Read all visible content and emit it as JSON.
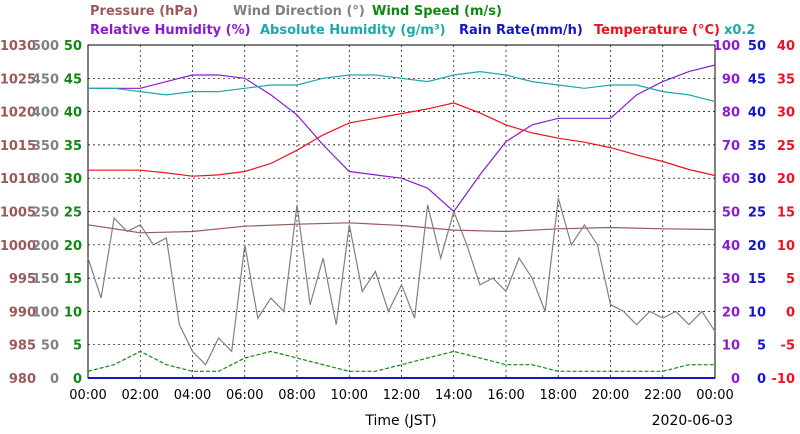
{
  "chart_data": {
    "type": "line",
    "date": "2020-06-03",
    "xlabel": "Time (JST)",
    "x_ticks": [
      "00:00",
      "02:00",
      "04:00",
      "06:00",
      "08:00",
      "10:00",
      "12:00",
      "14:00",
      "16:00",
      "18:00",
      "20:00",
      "22:00",
      "00:00"
    ],
    "left_axes": [
      {
        "name": "Pressure (hPa)",
        "color": "#9a5a5a",
        "min": 980,
        "max": 1030,
        "ticks": [
          "980",
          "985",
          "990",
          "995",
          "1000",
          "1005",
          "1010",
          "1015",
          "1020",
          "1025",
          "1030"
        ]
      },
      {
        "name": "Wind Direction (°)",
        "color": "#808080",
        "min": 0,
        "max": 500,
        "ticks": [
          "0",
          "50",
          "100",
          "150",
          "200",
          "250",
          "300",
          "350",
          "400",
          "450",
          "500"
        ]
      },
      {
        "name": "Wind Speed (m/s)",
        "color": "#118811",
        "min": 0,
        "max": 50,
        "ticks": [
          "0",
          "5",
          "10",
          "15",
          "20",
          "25",
          "30",
          "35",
          "40",
          "45",
          "50"
        ]
      }
    ],
    "right_axes": [
      {
        "name": "Relative Humidity (%)",
        "color": "#8a1ad6",
        "min": 0,
        "max": 100,
        "ticks": [
          "0",
          "10",
          "20",
          "30",
          "40",
          "50",
          "60",
          "70",
          "80",
          "90",
          "100"
        ]
      },
      {
        "name": "Absolute Humidity (g/m³)",
        "color": "#1aaaaa",
        "scale_note": "x0.2"
      },
      {
        "name": "Rain Rate(mm/h)",
        "color": "#1515cc",
        "min": 0,
        "max": 50,
        "ticks": [
          "0",
          "5",
          "10",
          "15",
          "20",
          "25",
          "30",
          "35",
          "40",
          "45",
          "50"
        ]
      },
      {
        "name": "Temperature (°C)",
        "color": "#ee1122",
        "min": -10,
        "max": 40,
        "ticks": [
          "-10",
          "-5",
          "0",
          "5",
          "10",
          "15",
          "20",
          "25",
          "30",
          "35",
          "40"
        ]
      }
    ],
    "grid": true,
    "series": [
      {
        "name": "Pressure (hPa)",
        "color": "#9a5a5a",
        "axis": "pressure",
        "x": [
          0,
          2,
          4,
          6,
          8,
          10,
          12,
          14,
          16,
          18,
          20,
          22,
          24
        ],
        "values": [
          1003.0,
          1001.8,
          1002.0,
          1002.8,
          1003.1,
          1003.3,
          1002.9,
          1002.2,
          1002.0,
          1002.4,
          1002.6,
          1002.4,
          1002.3
        ]
      },
      {
        "name": "Wind Direction (°)",
        "color": "#808080",
        "axis": "direction",
        "x": [
          0,
          0.5,
          1,
          1.5,
          2,
          2.5,
          3,
          3.5,
          4,
          4.5,
          5,
          5.5,
          6,
          6.5,
          7,
          7.5,
          8,
          8.5,
          9,
          9.5,
          10,
          10.5,
          11,
          11.5,
          12,
          12.5,
          13,
          13.5,
          14,
          14.5,
          15,
          15.5,
          16,
          16.5,
          17,
          17.5,
          18,
          18.5,
          19,
          19.5,
          20,
          20.5,
          21,
          21.5,
          22,
          22.5,
          23,
          23.5,
          24
        ],
        "values": [
          180,
          120,
          240,
          220,
          230,
          200,
          210,
          80,
          40,
          20,
          60,
          40,
          200,
          90,
          120,
          100,
          260,
          110,
          180,
          80,
          230,
          130,
          160,
          100,
          140,
          90,
          260,
          180,
          250,
          200,
          140,
          150,
          130,
          180,
          150,
          100,
          270,
          200,
          230,
          200,
          110,
          100,
          80,
          100,
          90,
          100,
          80,
          100,
          70
        ]
      },
      {
        "name": "Wind Speed (m/s)",
        "color": "#118811",
        "axis": "speed",
        "x": [
          0,
          1,
          2,
          3,
          4,
          5,
          6,
          7,
          8,
          9,
          10,
          11,
          12,
          13,
          14,
          15,
          16,
          17,
          18,
          19,
          20,
          21,
          22,
          23,
          24
        ],
        "values": [
          1,
          2,
          4,
          2,
          1,
          1,
          3,
          4,
          3,
          2,
          1,
          1,
          2,
          3,
          4,
          3,
          2,
          2,
          1,
          1,
          1,
          1,
          1,
          2,
          2
        ]
      },
      {
        "name": "Relative Humidity (%)",
        "color": "#8a1ad6",
        "axis": "rh",
        "x": [
          0,
          1,
          2,
          3,
          4,
          5,
          6,
          7,
          8,
          9,
          10,
          11,
          12,
          13,
          14,
          15,
          16,
          17,
          18,
          19,
          20,
          21,
          22,
          23,
          24
        ],
        "values": [
          87,
          87,
          87,
          89,
          91,
          91,
          90,
          85,
          79,
          70,
          62,
          61,
          60,
          57,
          50,
          61,
          71,
          76,
          78,
          78,
          78,
          85,
          89,
          92,
          94
        ]
      },
      {
        "name": "Absolute Humidity (g/m³)",
        "color": "#1aaaaa",
        "axis": "rh",
        "scale": "x0.2",
        "x": [
          0,
          1,
          2,
          3,
          4,
          5,
          6,
          7,
          8,
          9,
          10,
          11,
          12,
          13,
          14,
          15,
          16,
          17,
          18,
          19,
          20,
          21,
          22,
          23,
          24
        ],
        "values": [
          87,
          87,
          86,
          85,
          86,
          86,
          87,
          88,
          88,
          90,
          91,
          91,
          90,
          89,
          91,
          92,
          91,
          89,
          88,
          87,
          88,
          88,
          86,
          85,
          83
        ]
      },
      {
        "name": "Temperature (°C)",
        "color": "#ee1122",
        "axis": "temp",
        "x": [
          0,
          1,
          2,
          3,
          4,
          5,
          6,
          7,
          8,
          9,
          10,
          11,
          12,
          13,
          14,
          15,
          16,
          17,
          18,
          19,
          20,
          21,
          22,
          23,
          24
        ],
        "values": [
          21.2,
          21.2,
          21.2,
          20.8,
          20.3,
          20.5,
          21.0,
          22.2,
          24.2,
          26.5,
          28.3,
          29.0,
          29.7,
          30.4,
          31.3,
          29.8,
          28.0,
          26.8,
          26.0,
          25.4,
          24.6,
          23.5,
          22.5,
          21.3,
          20.4
        ]
      },
      {
        "name": "Rain Rate(mm/h)",
        "color": "#1515cc",
        "axis": "rain",
        "x": [
          0,
          24
        ],
        "values": [
          0,
          0
        ]
      }
    ]
  }
}
